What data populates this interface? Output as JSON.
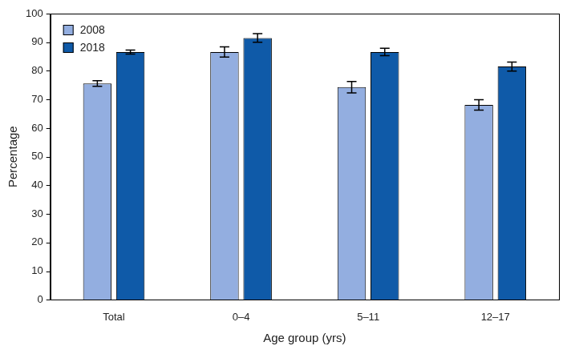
{
  "chart_data": {
    "type": "bar",
    "categories": [
      "Total",
      "0–4",
      "5–11",
      "12–17"
    ],
    "x_label": "Age group (yrs)",
    "y_label": "Percentage",
    "series": [
      {
        "name": "2008",
        "color": "#93aee0",
        "values": [
          75.6,
          86.6,
          74.3,
          68.1
        ],
        "errors": [
          1.0,
          1.8,
          2.0,
          1.8
        ]
      },
      {
        "name": "2018",
        "color": "#0f5aa8",
        "values": [
          86.6,
          91.5,
          86.6,
          81.5
        ],
        "errors": [
          0.7,
          1.5,
          1.3,
          1.6
        ]
      }
    ],
    "ylim": [
      0,
      100
    ],
    "yticks": [
      0,
      10,
      20,
      30,
      40,
      50,
      60,
      70,
      80,
      90,
      100
    ],
    "grid": false,
    "legend": "top-left"
  }
}
